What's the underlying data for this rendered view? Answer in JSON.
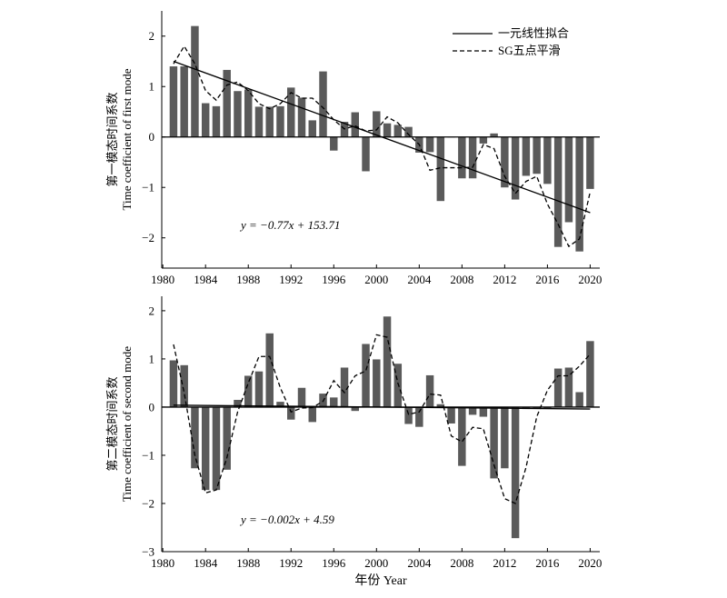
{
  "figure": {
    "xlabel": "年份 Year"
  },
  "chart_data": [
    {
      "type": "bar",
      "ylabel_cn": "第一模态时间系数",
      "ylabel_en": "Time coefficient of first mode",
      "xlim": [
        1979.9,
        2020.9
      ],
      "ylim": [
        -2.6,
        2.5
      ],
      "xticks": [
        1980,
        1984,
        1988,
        1992,
        1996,
        2000,
        2004,
        2008,
        2012,
        2016,
        2020
      ],
      "yticks": [
        -2,
        -1,
        0,
        1,
        2
      ],
      "equation": "y = −0.77x + 153.71",
      "legend": {
        "position": "top-right",
        "entries": [
          {
            "label": "一元线性拟合",
            "style": "solid"
          },
          {
            "label": "SG五点平滑",
            "style": "dashed"
          }
        ]
      },
      "grid": false,
      "bar_color": "#5a5a5a",
      "x": [
        1981,
        1982,
        1983,
        1984,
        1985,
        1986,
        1987,
        1988,
        1989,
        1990,
        1991,
        1992,
        1993,
        1994,
        1995,
        1996,
        1997,
        1998,
        1999,
        2000,
        2001,
        2002,
        2003,
        2004,
        2005,
        2006,
        2007,
        2008,
        2009,
        2010,
        2011,
        2012,
        2013,
        2014,
        2015,
        2016,
        2017,
        2018,
        2019,
        2020
      ],
      "series": [
        {
          "type": "bar",
          "values": [
            1.4,
            1.4,
            2.2,
            0.67,
            0.61,
            1.33,
            0.91,
            0.94,
            0.6,
            0.6,
            0.61,
            0.98,
            0.78,
            0.33,
            1.3,
            -0.27,
            0.3,
            0.49,
            -0.68,
            0.51,
            0.27,
            0.24,
            0.2,
            -0.31,
            -0.3,
            -1.27,
            0.0,
            -0.82,
            -0.82,
            -0.13,
            0.07,
            -1.0,
            -1.24,
            -0.77,
            -0.73,
            -0.93,
            -2.18,
            -1.69,
            -2.27,
            -1.03
          ]
        },
        {
          "type": "line",
          "style": "solid",
          "name": "一元线性拟合",
          "x": [
            1981,
            2020
          ],
          "values": [
            1.5,
            -1.5
          ]
        },
        {
          "type": "line",
          "style": "dashed",
          "name": "SG五点平滑",
          "values": [
            1.45,
            1.8,
            1.45,
            0.92,
            0.73,
            1.03,
            1.09,
            0.92,
            0.66,
            0.56,
            0.66,
            0.88,
            0.77,
            0.77,
            0.58,
            0.34,
            0.16,
            0.22,
            0.12,
            0.14,
            0.4,
            0.28,
            0.05,
            -0.15,
            -0.66,
            -0.61,
            -0.61,
            -0.61,
            -0.6,
            -0.15,
            -0.23,
            -0.78,
            -1.12,
            -0.88,
            -0.78,
            -1.33,
            -1.73,
            -2.17,
            -2.02,
            -1.09
          ]
        }
      ]
    },
    {
      "type": "bar",
      "ylabel_cn": "第二模态时间系数",
      "ylabel_en": "Time coefficient of second mode",
      "xlim": [
        1979.9,
        2020.9
      ],
      "ylim": [
        -3,
        2.3
      ],
      "xticks": [
        1980,
        1984,
        1988,
        1992,
        1996,
        2000,
        2004,
        2008,
        2012,
        2016,
        2020
      ],
      "yticks": [
        -3,
        -2,
        -1,
        0,
        1,
        2
      ],
      "equation": "y = −0.002x + 4.59",
      "grid": false,
      "bar_color": "#5a5a5a",
      "x": [
        1981,
        1982,
        1983,
        1984,
        1985,
        1986,
        1987,
        1988,
        1989,
        1990,
        1991,
        1992,
        1993,
        1994,
        1995,
        1996,
        1997,
        1998,
        1999,
        2000,
        2001,
        2002,
        2003,
        2004,
        2005,
        2006,
        2007,
        2008,
        2009,
        2010,
        2011,
        2012,
        2013,
        2014,
        2015,
        2016,
        2017,
        2018,
        2019,
        2020
      ],
      "series": [
        {
          "type": "bar",
          "values": [
            0.97,
            0.87,
            -1.27,
            -1.72,
            -1.72,
            -1.3,
            0.15,
            0.65,
            0.74,
            1.53,
            0.11,
            -0.26,
            0.4,
            -0.31,
            0.28,
            0.2,
            0.82,
            -0.08,
            1.31,
            0.99,
            1.88,
            0.9,
            -0.35,
            -0.41,
            0.66,
            0.06,
            -0.34,
            -1.22,
            -0.16,
            -0.2,
            -1.48,
            -1.27,
            -2.72,
            -0.04,
            -0.02,
            -0.02,
            0.8,
            0.82,
            0.31,
            1.37
          ]
        },
        {
          "type": "line",
          "style": "solid",
          "name": "一元线性拟合",
          "x": [
            1981,
            2020
          ],
          "values": [
            0.04,
            -0.04
          ]
        },
        {
          "type": "line",
          "style": "dashed",
          "name": "SG五点平滑",
          "values": [
            1.3,
            0.3,
            -1.0,
            -1.78,
            -1.72,
            -1.05,
            -0.1,
            0.5,
            1.05,
            1.05,
            0.4,
            -0.1,
            -0.02,
            -0.01,
            0.12,
            0.55,
            0.3,
            0.65,
            0.75,
            1.5,
            1.45,
            0.5,
            -0.15,
            -0.1,
            0.27,
            0.25,
            -0.6,
            -0.72,
            -0.42,
            -0.45,
            -1.2,
            -1.9,
            -2.0,
            -1.25,
            -0.2,
            0.35,
            0.65,
            0.65,
            0.85,
            1.1
          ]
        }
      ]
    }
  ]
}
